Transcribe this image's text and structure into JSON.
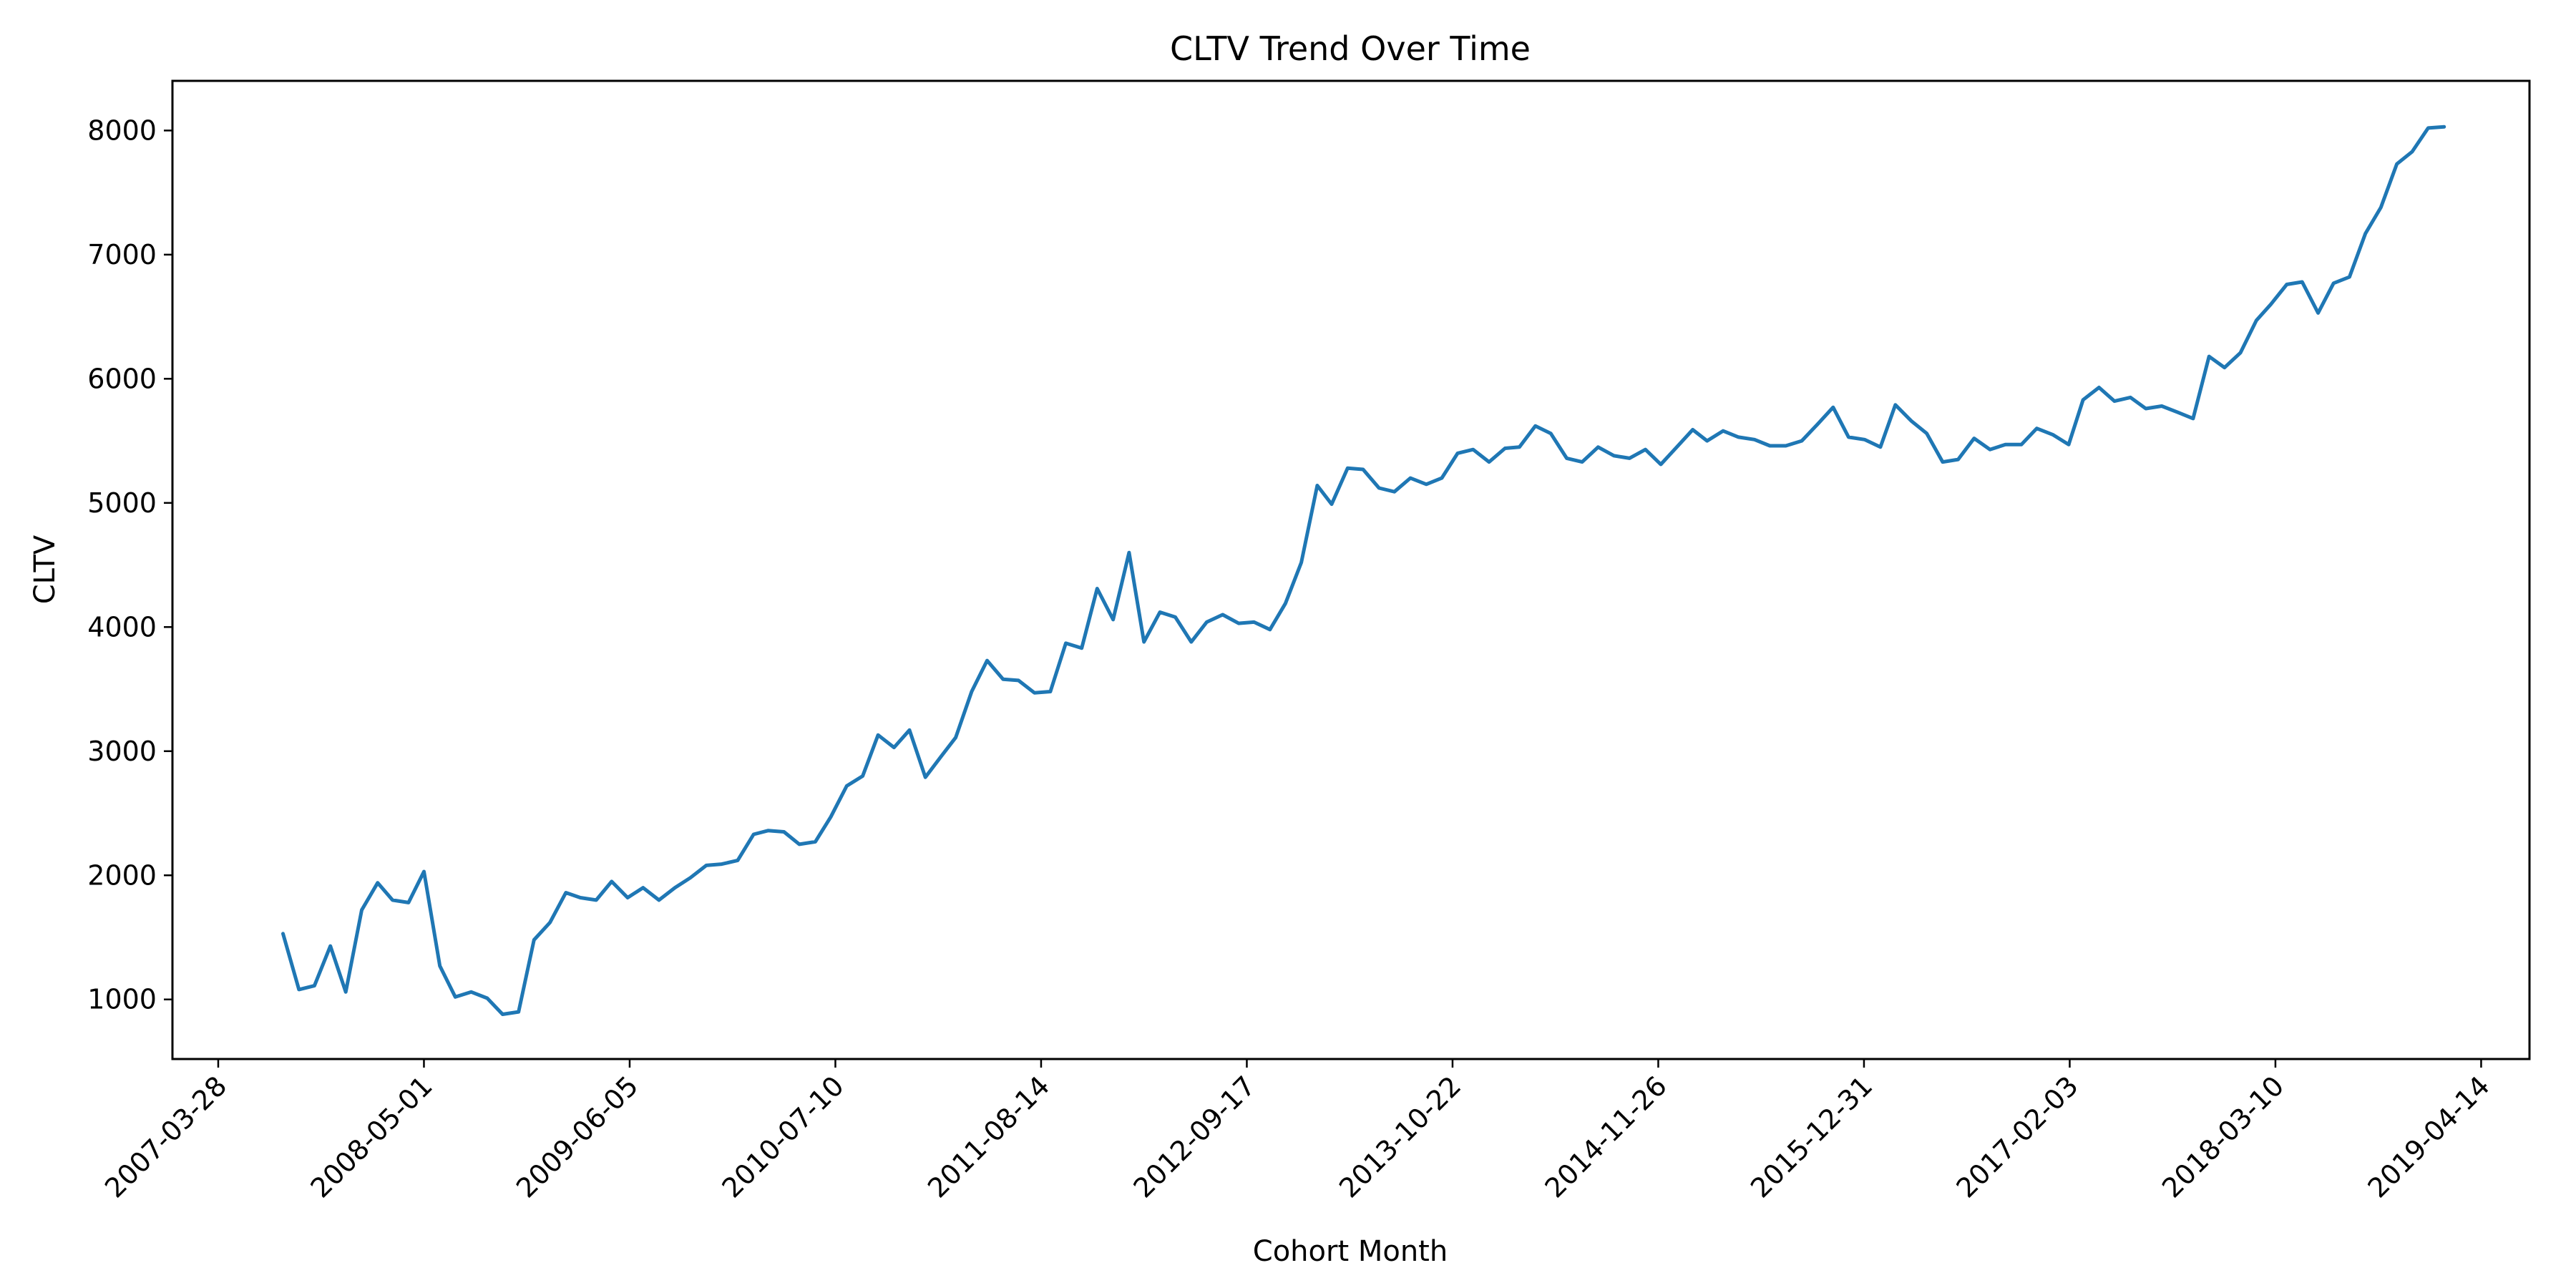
{
  "chart_data": {
    "type": "line",
    "title": "CLTV Trend Over Time",
    "xlabel": "Cohort Month",
    "ylabel": "CLTV",
    "grid": false,
    "legend": "none",
    "xlim": [
      "2006-12-29",
      "2019-07-17"
    ],
    "ylim": [
      520,
      8400
    ],
    "x_ticks": [
      "2007-03-28",
      "2008-05-01",
      "2009-06-05",
      "2010-07-10",
      "2011-08-14",
      "2012-09-17",
      "2013-10-22",
      "2014-11-26",
      "2015-12-31",
      "2017-02-03",
      "2018-03-10",
      "2019-04-14"
    ],
    "y_ticks": [
      1000,
      2000,
      3000,
      4000,
      5000,
      6000,
      7000,
      8000
    ],
    "series": [
      {
        "color": "#1f77b4",
        "x_start": "2007-08",
        "x_step": "1 month",
        "values": [
          1530,
          1080,
          1110,
          1430,
          1060,
          1720,
          1940,
          1800,
          1780,
          2030,
          1270,
          1020,
          1060,
          1010,
          880,
          900,
          1480,
          1620,
          1860,
          1820,
          1800,
          1950,
          1820,
          1900,
          1800,
          1900,
          1980,
          2080,
          2090,
          2120,
          2330,
          2360,
          2350,
          2250,
          2270,
          2470,
          2720,
          2800,
          3130,
          3030,
          3170,
          2790,
          2960,
          3110,
          3480,
          3730,
          3580,
          3570,
          3470,
          3480,
          3870,
          3830,
          4310,
          4060,
          4600,
          3880,
          4120,
          4080,
          3880,
          4040,
          4100,
          4030,
          4040,
          3980,
          4190,
          4520,
          5140,
          4990,
          5280,
          5270,
          5120,
          5090,
          5200,
          5150,
          5200,
          5400,
          5430,
          5330,
          5440,
          5450,
          5620,
          5560,
          5360,
          5330,
          5450,
          5380,
          5360,
          5430,
          5310,
          5450,
          5590,
          5500,
          5580,
          5530,
          5510,
          5460,
          5460,
          5500,
          5630,
          5770,
          5530,
          5510,
          5450,
          5790,
          5660,
          5560,
          5330,
          5350,
          5520,
          5430,
          5470,
          5470,
          5600,
          5550,
          5470,
          5830,
          5930,
          5820,
          5850,
          5760,
          5780,
          5730,
          5680,
          6180,
          6090,
          6210,
          6470,
          6600,
          6760,
          6780,
          6530,
          6770,
          6820,
          7170,
          7380,
          7730,
          7830,
          8020,
          8030
        ]
      }
    ]
  }
}
